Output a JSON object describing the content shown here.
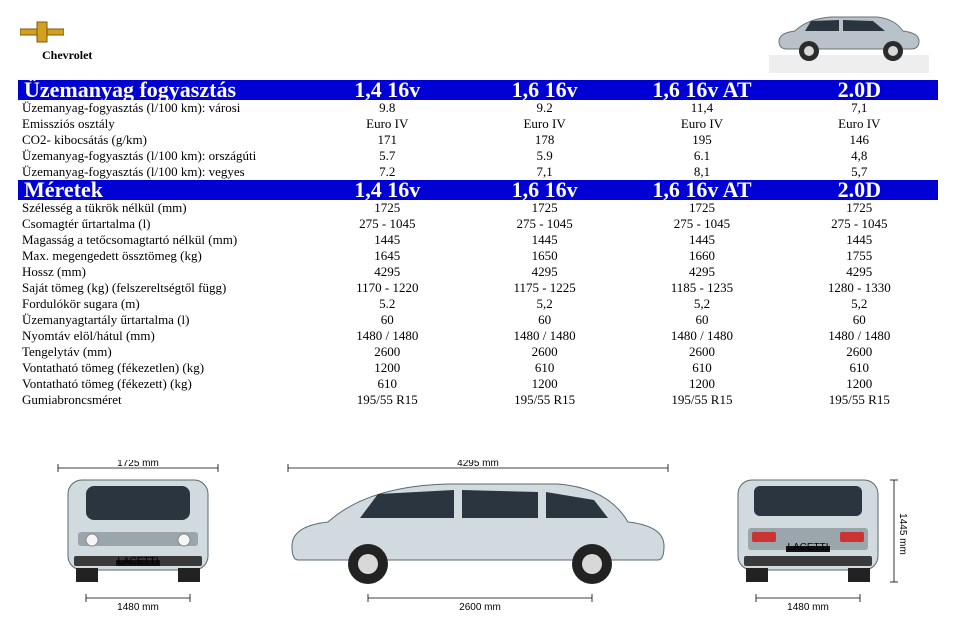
{
  "brand": "Chevrolet",
  "sections": {
    "fuel": {
      "title": "Üzemanyag fogyasztás",
      "cols": [
        "1,4 16v",
        "1,6 16v",
        "1,6 16v AT",
        "2.0D"
      ],
      "rows": [
        {
          "label": "Üzemanyag-fogyasztás (l/100 km): városi",
          "vals": [
            "9.8",
            "9.2",
            "11,4",
            "7,1"
          ]
        },
        {
          "label": "Emissziós osztály",
          "vals": [
            "Euro IV",
            "Euro IV",
            "Euro IV",
            "Euro IV"
          ]
        },
        {
          "label": "CO2- kibocsátás (g/km)",
          "vals": [
            "171",
            "178",
            "195",
            "146"
          ]
        },
        {
          "label": "Üzemanyag-fogyasztás (l/100 km): országúti",
          "vals": [
            "5.7",
            "5.9",
            "6.1",
            "4,8"
          ]
        },
        {
          "label": "Üzemanyag-fogyasztás (l/100 km): vegyes",
          "vals": [
            "7.2",
            "7,1",
            "8,1",
            "5,7"
          ]
        }
      ]
    },
    "dim": {
      "title": "Méretek",
      "cols": [
        "1,4 16v",
        "1,6 16v",
        "1,6 16v AT",
        "2.0D"
      ],
      "rows": [
        {
          "label": "Szélesség a tükrök nélkül (mm)",
          "vals": [
            "1725",
            "1725",
            "1725",
            "1725"
          ]
        },
        {
          "label": "Csomagtér űrtartalma (l)",
          "vals": [
            "275 - 1045",
            "275 - 1045",
            "275 - 1045",
            "275 - 1045"
          ]
        },
        {
          "label": "Magasság a tetőcsomagtartó nélkül (mm)",
          "vals": [
            "1445",
            "1445",
            "1445",
            "1445"
          ]
        },
        {
          "label": "Max. megengedett össztömeg (kg)",
          "vals": [
            "1645",
            "1650",
            "1660",
            "1755"
          ]
        },
        {
          "label": "Hossz (mm)",
          "vals": [
            "4295",
            "4295",
            "4295",
            "4295"
          ]
        },
        {
          "label": "Saját tömeg (kg) (felszereltségtől függ)",
          "vals": [
            "1170 - 1220",
            "1175 - 1225",
            "1185 - 1235",
            "1280 - 1330"
          ]
        },
        {
          "label": "Fordulókör sugara (m)",
          "vals": [
            "5.2",
            "5,2",
            "5,2",
            "5,2"
          ]
        },
        {
          "label": "Üzemanyagtartály űrtartalma (l)",
          "vals": [
            "60",
            "60",
            "60",
            "60"
          ]
        },
        {
          "label": "Nyomtáv elöl/hátul (mm)",
          "vals": [
            "1480 / 1480",
            "1480 / 1480",
            "1480 / 1480",
            "1480 / 1480"
          ]
        },
        {
          "label": "Tengelytáv (mm)",
          "vals": [
            "2600",
            "2600",
            "2600",
            "2600"
          ]
        },
        {
          "label": "Vontatható tömeg (fékezetlen) (kg)",
          "vals": [
            "1200",
            "610",
            "610",
            "610"
          ]
        },
        {
          "label": "Vontatható tömeg (fékezett) (kg)",
          "vals": [
            "610",
            "1200",
            "1200",
            "1200"
          ]
        },
        {
          "label": "Gumiabroncsméret",
          "vals": [
            "195/55 R15",
            "195/55 R15",
            "195/55 R15",
            "195/55 R15"
          ]
        }
      ]
    }
  },
  "diagram_labels": {
    "front_width": "1725 mm",
    "front_track": "1480 mm",
    "length": "4295 mm",
    "wheelbase": "2600 mm",
    "height": "1445 mm",
    "rear_track": "1480 mm",
    "badge": "LACETTI"
  },
  "colors": {
    "section_bg": "#0000d4",
    "section_fg": "#ffffff",
    "car_body": "#d0dadf",
    "car_stroke": "#5a6a72",
    "car_window": "#2a3540",
    "wheel": "#222222",
    "wheel_cap": "#d8d8d8"
  }
}
